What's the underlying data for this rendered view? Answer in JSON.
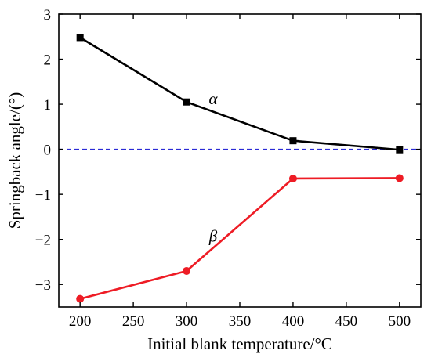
{
  "chart_data": {
    "type": "line",
    "title": "",
    "xlabel": "Initial blank temperature/°C",
    "ylabel": "Springback angle/(°)",
    "xlim": [
      180,
      520
    ],
    "ylim": [
      -3.5,
      3
    ],
    "x_ticks": [
      200,
      250,
      300,
      350,
      400,
      450,
      500
    ],
    "y_ticks": [
      -3,
      -2,
      -1,
      0,
      1,
      2,
      3
    ],
    "x_tick_labels": [
      "200",
      "250",
      "300",
      "350",
      "400",
      "450",
      "500"
    ],
    "y_tick_labels": [
      "−3",
      "−2",
      "−1",
      "0",
      "1",
      "2",
      "3"
    ],
    "grid": false,
    "reference_line": {
      "y": 0,
      "style": "dashed",
      "color": "#2b2bd6"
    },
    "series": [
      {
        "name": "α",
        "color": "#000000",
        "marker": "square",
        "x": [
          200,
          300,
          400,
          500
        ],
        "y": [
          2.48,
          1.05,
          0.19,
          -0.01
        ],
        "label_at": {
          "x": 325,
          "y": 1.0
        }
      },
      {
        "name": "β",
        "color": "#ee1c25",
        "marker": "circle",
        "x": [
          200,
          300,
          400,
          500
        ],
        "y": [
          -3.32,
          -2.7,
          -0.65,
          -0.64
        ],
        "label_at": {
          "x": 325,
          "y": -2.05
        }
      }
    ]
  }
}
